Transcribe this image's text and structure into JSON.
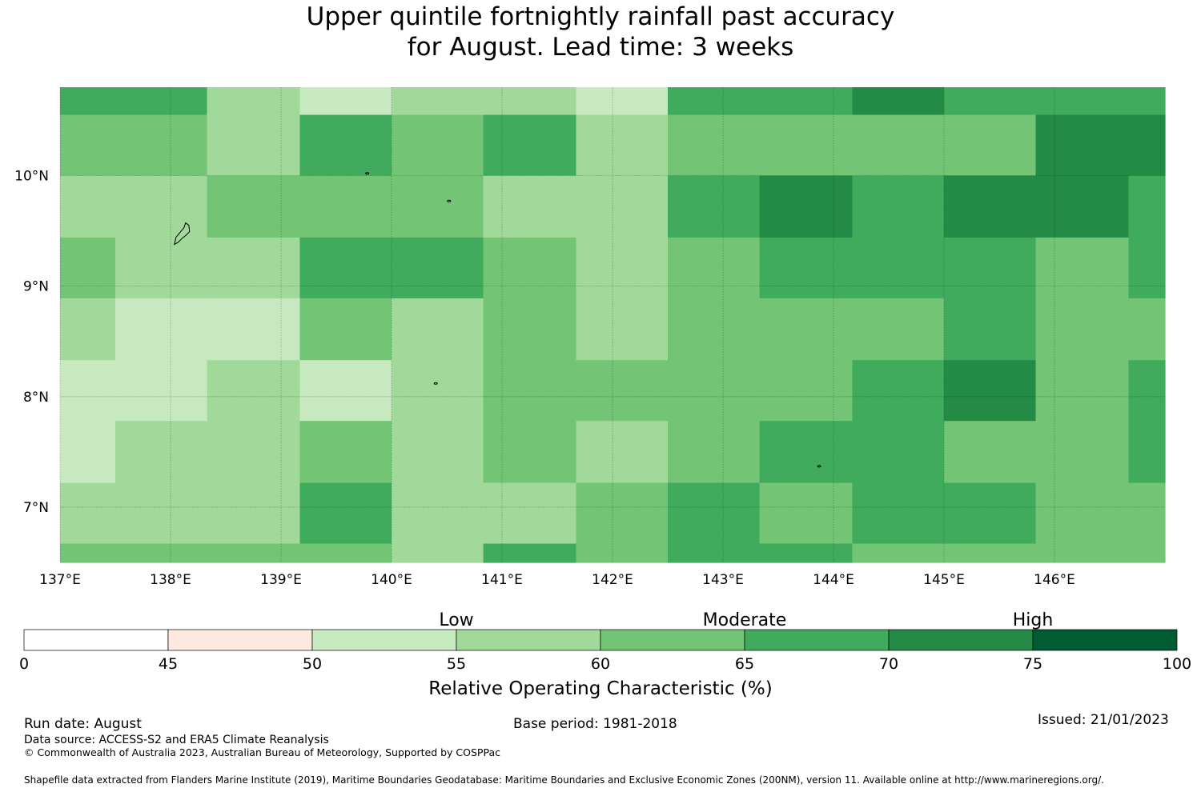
{
  "title": {
    "line1": "Upper quintile fortnightly rainfall past accuracy",
    "line2": "for August. Lead time: 3 weeks"
  },
  "map": {
    "lon_range": [
      137.0,
      147.0
    ],
    "lat_range": [
      6.5,
      10.8
    ],
    "lon_ticks": [
      {
        "value": 137,
        "label": "137°E"
      },
      {
        "value": 138,
        "label": "138°E"
      },
      {
        "value": 139,
        "label": "139°E"
      },
      {
        "value": 140,
        "label": "140°E"
      },
      {
        "value": 141,
        "label": "141°E"
      },
      {
        "value": 142,
        "label": "142°E"
      },
      {
        "value": 143,
        "label": "143°E"
      },
      {
        "value": 144,
        "label": "144°E"
      },
      {
        "value": 145,
        "label": "145°E"
      },
      {
        "value": 146,
        "label": "146°E"
      }
    ],
    "lat_ticks": [
      {
        "value": 10,
        "label": "10°N"
      },
      {
        "value": 9,
        "label": "9°N"
      },
      {
        "value": 8,
        "label": "8°N"
      },
      {
        "value": 7,
        "label": "7°N"
      }
    ],
    "grid_lines": true,
    "grid_columns_lon": [
      137.0,
      137.5,
      138.33,
      139.17,
      140.0,
      140.83,
      141.67,
      142.5,
      143.33,
      144.17,
      145.0,
      145.83,
      146.67,
      147.0
    ],
    "grid_rows_lat": [
      10.8,
      10.55,
      10.0,
      9.44,
      8.89,
      8.33,
      7.78,
      7.22,
      6.67,
      6.5
    ],
    "roc_bins_percent": [
      [
        65,
        65,
        55,
        50,
        55,
        55,
        50,
        65,
        65,
        70,
        65,
        65,
        65
      ],
      [
        60,
        60,
        55,
        65,
        60,
        65,
        55,
        60,
        60,
        60,
        60,
        70,
        70
      ],
      [
        55,
        55,
        60,
        60,
        60,
        55,
        55,
        65,
        70,
        65,
        70,
        70,
        65
      ],
      [
        60,
        55,
        55,
        65,
        65,
        60,
        55,
        60,
        65,
        65,
        65,
        60,
        65
      ],
      [
        55,
        50,
        50,
        60,
        55,
        60,
        55,
        60,
        60,
        60,
        65,
        60,
        60
      ],
      [
        50,
        50,
        55,
        50,
        55,
        60,
        60,
        60,
        60,
        65,
        70,
        60,
        65
      ],
      [
        50,
        55,
        55,
        60,
        55,
        60,
        55,
        60,
        65,
        65,
        60,
        60,
        65
      ],
      [
        55,
        55,
        55,
        65,
        55,
        55,
        60,
        65,
        60,
        65,
        65,
        60,
        60
      ],
      [
        60,
        60,
        60,
        60,
        55,
        65,
        60,
        65,
        65,
        60,
        60,
        60,
        60
      ]
    ],
    "islands": [
      {
        "name": "yap-island",
        "lon": 138.1,
        "lat": 9.5
      },
      {
        "name": "islet-a",
        "lon": 139.78,
        "lat": 10.02
      },
      {
        "name": "islet-b",
        "lon": 140.52,
        "lat": 9.77
      },
      {
        "name": "islet-c",
        "lon": 140.4,
        "lat": 8.12
      },
      {
        "name": "islet-d",
        "lon": 143.87,
        "lat": 7.37
      }
    ]
  },
  "chart_data": {
    "type": "heatmap",
    "title": "Upper quintile fortnightly rainfall past accuracy for August. Lead time: 3 weeks",
    "xlabel": "",
    "ylabel": "",
    "colorbar_label": "Relative Operating Characteristic (%)",
    "value_bins": [
      0,
      45,
      50,
      55,
      60,
      65,
      70,
      75,
      100
    ]
  },
  "colorbar": {
    "category_labels": [
      "Low",
      "Moderate",
      "High"
    ],
    "boundaries": [
      0,
      45,
      50,
      55,
      60,
      65,
      70,
      75,
      100
    ],
    "tick_labels": [
      "0",
      "45",
      "50",
      "55",
      "60",
      "65",
      "70",
      "75",
      "100"
    ],
    "colors": [
      "#ffffff",
      "#fee9e0",
      "#c7e9c0",
      "#a1d99b",
      "#74c476",
      "#41ab5d",
      "#238b45",
      "#005a32"
    ],
    "label": "Relative Operating Characteristic (%)"
  },
  "colors": {
    "c50": "#c7e9c0",
    "c55": "#a1d99b",
    "c60": "#74c476",
    "c65": "#41ab5d",
    "c70": "#238b45",
    "c75": "#005a32"
  },
  "footer": {
    "run_date": "Run date: August",
    "base_period": "Base period: 1981-2018",
    "issued": "Issued: 21/01/2023",
    "data_source": "Data source: ACCESS-S2 and ERA5 Climate Reanalysis",
    "copyright": "© Commonwealth of Australia 2023, Australian Bureau of Meteorology, Supported by COSPPac",
    "shapefile": "Shapefile data extracted from Flanders Marine Institute (2019), Maritime Boundaries Geodatabase: Maritime Boundaries and Exclusive Economic Zones (200NM), version 11. Available online at http://www.marineregions.org/."
  }
}
